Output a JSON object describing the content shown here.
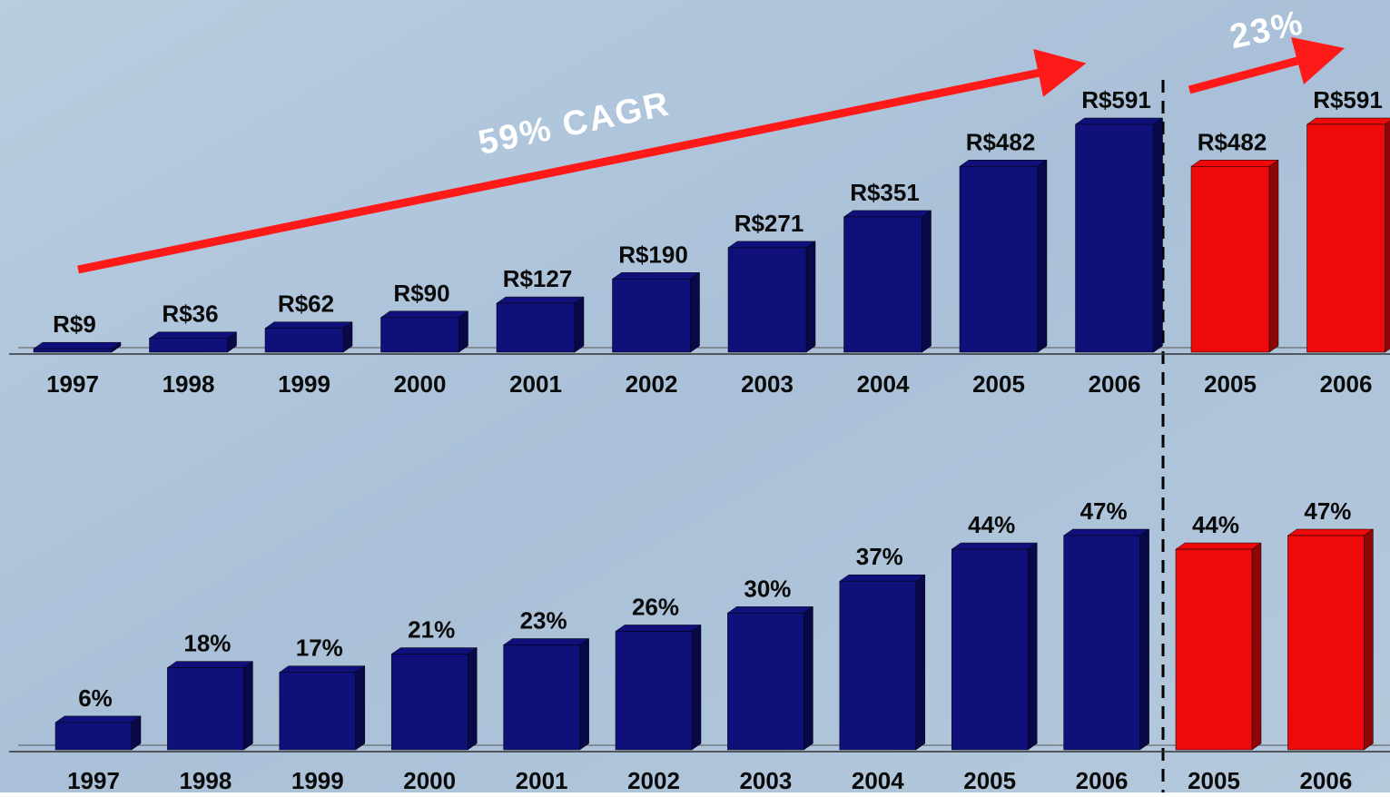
{
  "chart_data": [
    {
      "type": "bar",
      "categories": [
        "1997",
        "1998",
        "1999",
        "2000",
        "2001",
        "2002",
        "2003",
        "2004",
        "2005",
        "2006",
        "2005",
        "2006"
      ],
      "values": [
        9,
        36,
        62,
        90,
        127,
        190,
        271,
        351,
        482,
        591,
        482,
        591
      ],
      "value_labels": [
        "R$9",
        "R$36",
        "R$62",
        "R$90",
        "R$127",
        "R$190",
        "R$271",
        "R$351",
        "R$482",
        "R$591",
        "R$482",
        "R$591"
      ],
      "colors": [
        "#10107a",
        "#10107a",
        "#10107a",
        "#10107a",
        "#10107a",
        "#10107a",
        "#10107a",
        "#10107a",
        "#10107a",
        "#10107a",
        "#ee0a0a",
        "#ee0a0a"
      ],
      "annotations": [
        "59% CAGR",
        "23%"
      ]
    },
    {
      "type": "bar",
      "categories": [
        "1997",
        "1998",
        "1999",
        "2000",
        "2001",
        "2002",
        "2003",
        "2004",
        "2005",
        "2006",
        "2005",
        "2006"
      ],
      "values": [
        6,
        18,
        17,
        21,
        23,
        26,
        30,
        37,
        44,
        47,
        44,
        47
      ],
      "value_labels": [
        "6%",
        "18%",
        "17%",
        "21%",
        "23%",
        "26%",
        "30%",
        "37%",
        "44%",
        "47%",
        "44%",
        "47%"
      ],
      "colors": [
        "#10107a",
        "#10107a",
        "#10107a",
        "#10107a",
        "#10107a",
        "#10107a",
        "#10107a",
        "#10107a",
        "#10107a",
        "#10107a",
        "#ee0a0a",
        "#ee0a0a"
      ]
    }
  ]
}
